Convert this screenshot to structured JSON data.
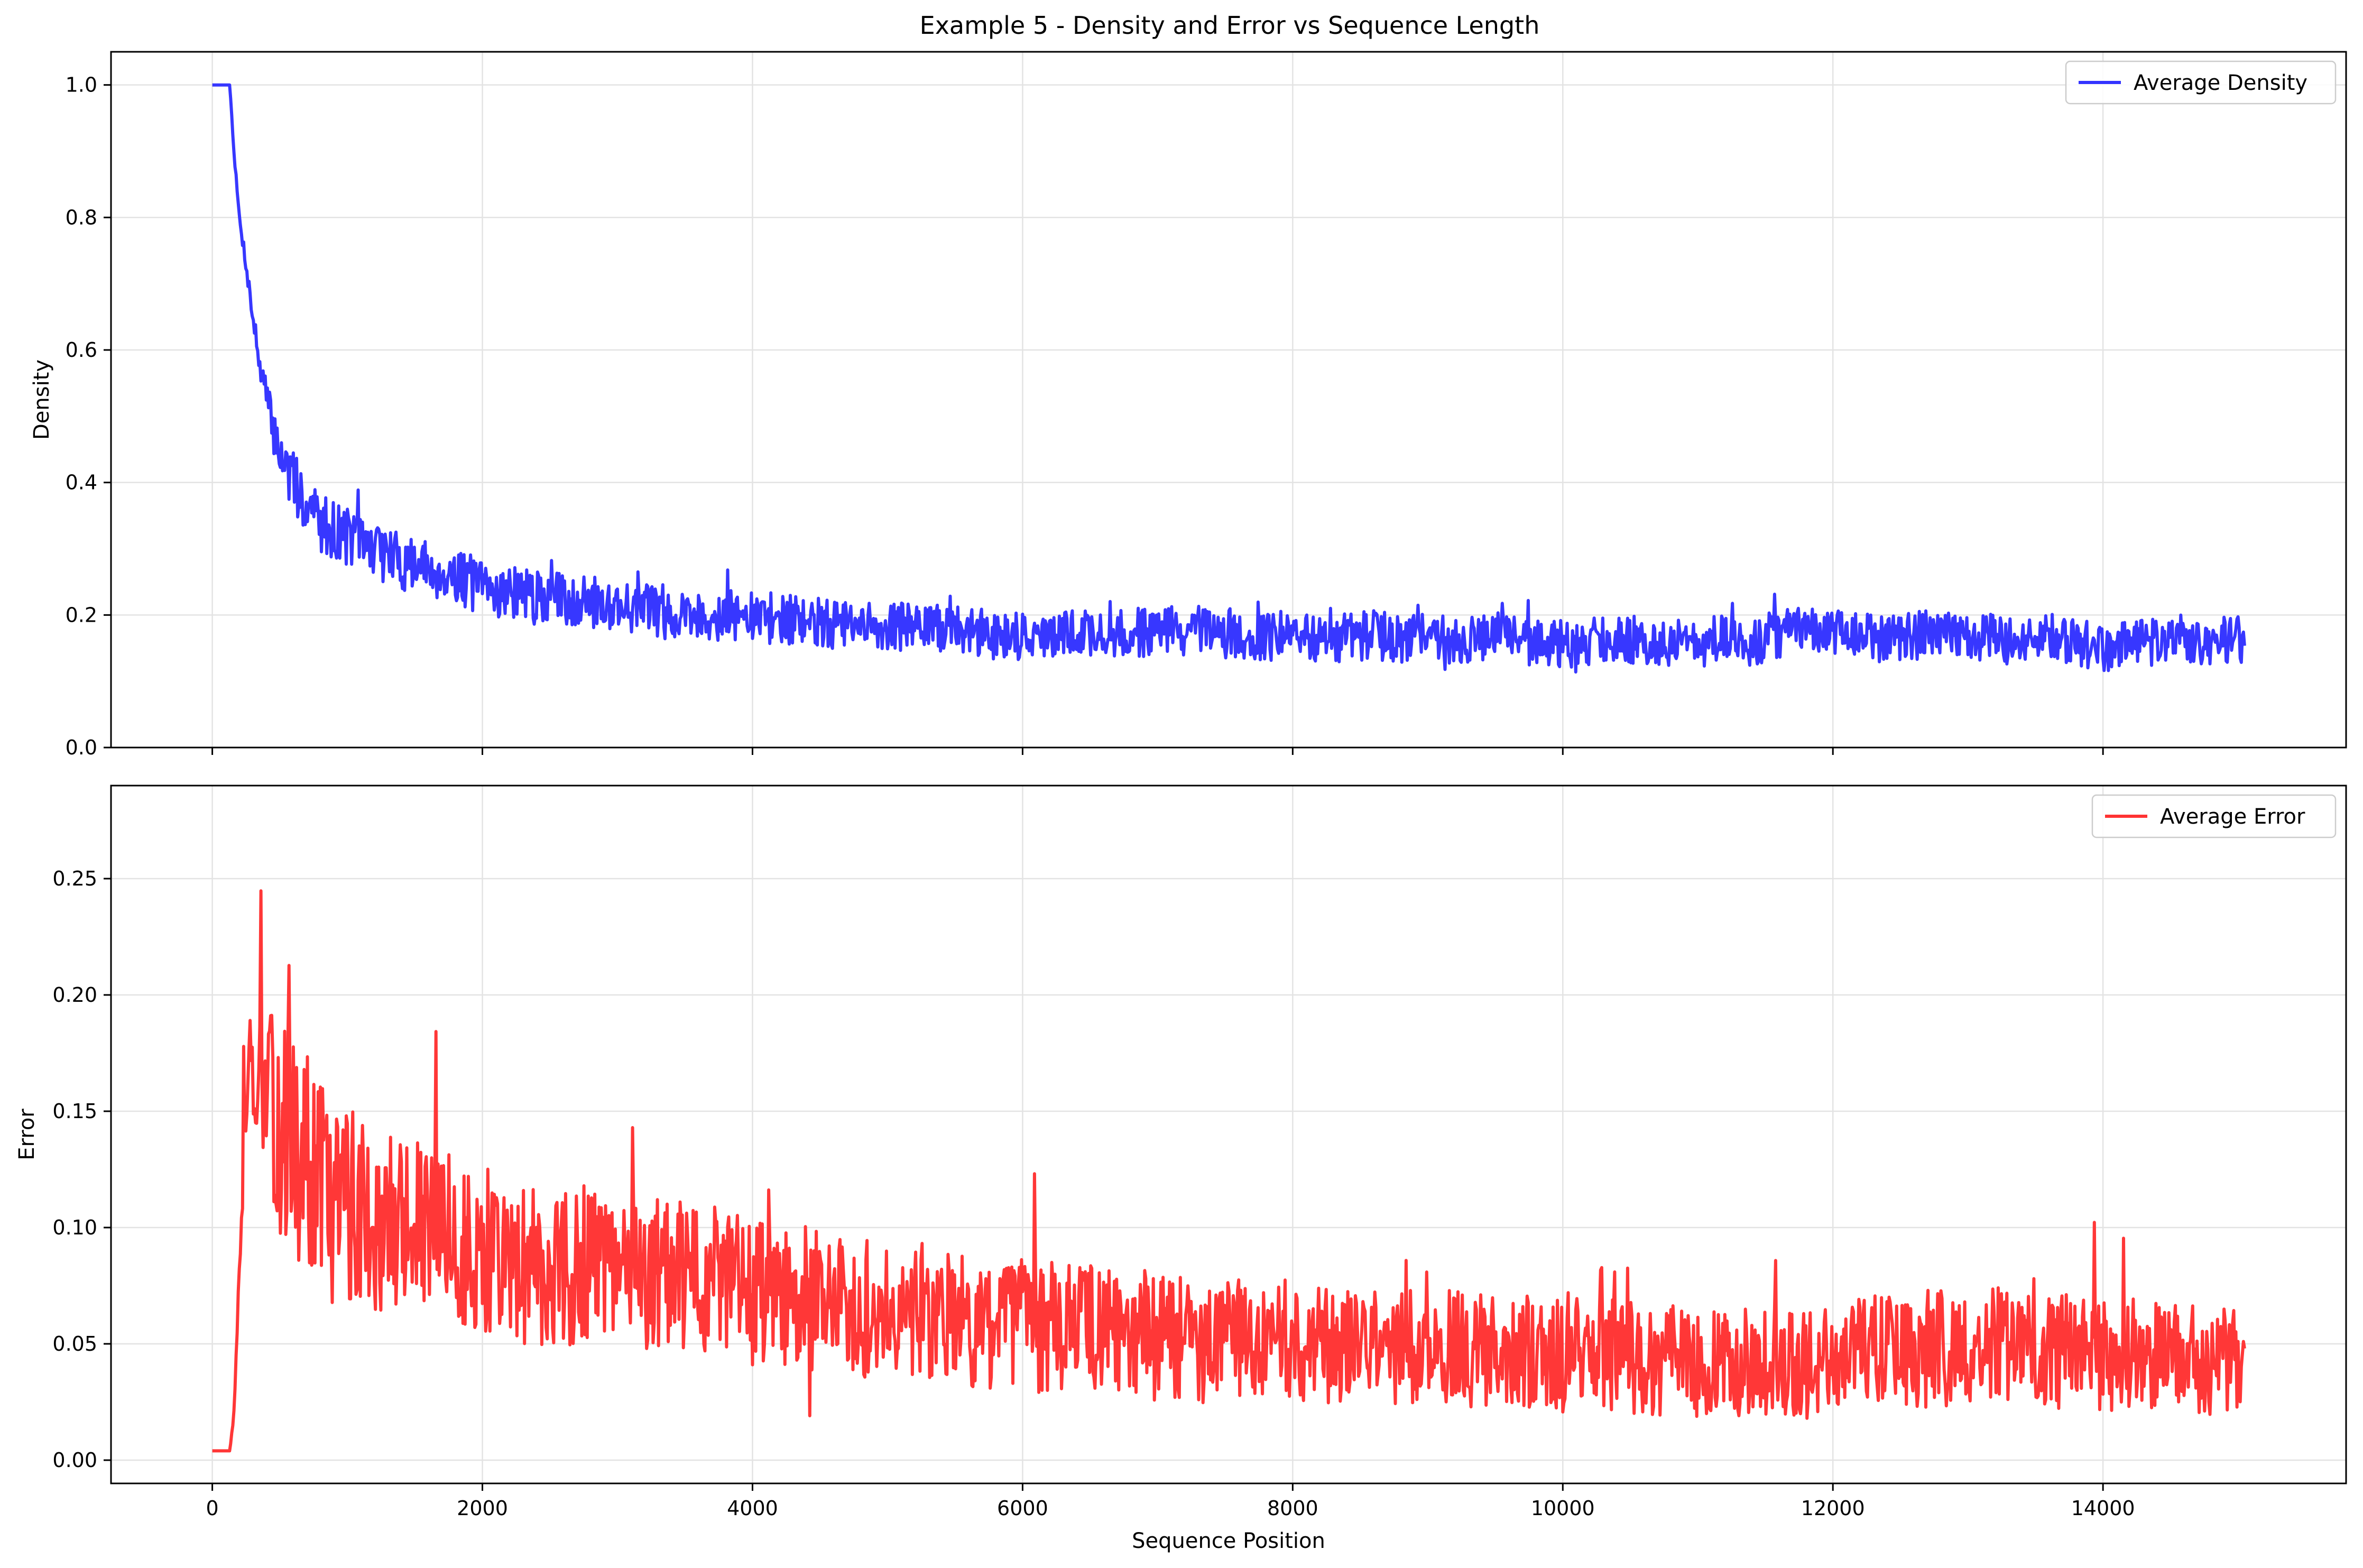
{
  "figure": {
    "title": "Example 5 - Density and Error vs Sequence Length"
  },
  "chart_data": [
    {
      "type": "line",
      "title": "Example 5 - Density and Error vs Sequence Length",
      "xlabel": "",
      "ylabel": "Density",
      "xlim": [
        -750,
        15800
      ],
      "ylim": [
        0.0,
        1.05
      ],
      "xticks": [
        0,
        2000,
        4000,
        6000,
        8000,
        10000,
        12000,
        14000
      ],
      "yticks": [
        0.0,
        0.2,
        0.4,
        0.6,
        0.8,
        1.0
      ],
      "ytick_labels": [
        "0.0",
        "0.2",
        "0.4",
        "0.6",
        "0.8",
        "1.0"
      ],
      "grid": true,
      "legend": "top-right",
      "series": [
        {
          "name": "Average Density",
          "color": "#3333ff",
          "x": [
            0,
            60,
            130,
            160,
            200,
            250,
            300,
            350,
            400,
            450,
            500,
            550,
            600,
            700,
            800,
            900,
            1000,
            1100,
            1200,
            1300,
            1400,
            1500,
            1600,
            1700,
            1800,
            1900,
            2000,
            2200,
            2400,
            2600,
            2800,
            3000,
            3200,
            3400,
            3600,
            3800,
            4000,
            4200,
            4400,
            4600,
            4800,
            5000,
            5200,
            5400,
            5600,
            5800,
            6000,
            6200,
            6400,
            6600,
            6800,
            7000,
            7200,
            7400,
            7600,
            7800,
            8000,
            8200,
            8400,
            8600,
            8800,
            9000,
            9200,
            9400,
            9600,
            9800,
            10000,
            10200,
            10400,
            10600,
            10800,
            11000,
            11200,
            11400,
            11600,
            11800,
            12000,
            12200,
            12400,
            12600,
            12800,
            13000,
            13200,
            13400,
            13600,
            13800,
            14000,
            14200,
            14400,
            14600,
            14800,
            15050
          ],
          "values": [
            1.0,
            1.0,
            1.0,
            0.9,
            0.8,
            0.73,
            0.65,
            0.58,
            0.53,
            0.48,
            0.45,
            0.42,
            0.4,
            0.37,
            0.34,
            0.33,
            0.32,
            0.31,
            0.3,
            0.29,
            0.28,
            0.275,
            0.27,
            0.265,
            0.26,
            0.25,
            0.24,
            0.235,
            0.225,
            0.225,
            0.22,
            0.215,
            0.21,
            0.205,
            0.2,
            0.2,
            0.195,
            0.195,
            0.19,
            0.185,
            0.18,
            0.185,
            0.18,
            0.18,
            0.175,
            0.17,
            0.17,
            0.165,
            0.175,
            0.17,
            0.17,
            0.18,
            0.175,
            0.17,
            0.17,
            0.165,
            0.17,
            0.165,
            0.165,
            0.17,
            0.165,
            0.17,
            0.16,
            0.165,
            0.165,
            0.16,
            0.155,
            0.16,
            0.165,
            0.16,
            0.16,
            0.155,
            0.165,
            0.16,
            0.17,
            0.175,
            0.17,
            0.17,
            0.165,
            0.17,
            0.17,
            0.17,
            0.165,
            0.16,
            0.165,
            0.16,
            0.15,
            0.155,
            0.16,
            0.165,
            0.16,
            0.165
          ]
        }
      ]
    },
    {
      "type": "line",
      "title": "",
      "xlabel": "Sequence Position",
      "ylabel": "Error",
      "xlim": [
        -750,
        15800
      ],
      "ylim": [
        -0.01,
        0.29
      ],
      "xticks": [
        0,
        2000,
        4000,
        6000,
        8000,
        10000,
        12000,
        14000
      ],
      "yticks": [
        0.0,
        0.05,
        0.1,
        0.15,
        0.2,
        0.25
      ],
      "ytick_labels": [
        "0.00",
        "0.05",
        "0.10",
        "0.15",
        "0.20",
        "0.25"
      ],
      "grid": true,
      "legend": "top-right",
      "series": [
        {
          "name": "Average Error",
          "color": "#ff3333",
          "x": [
            0,
            60,
            130,
            160,
            180,
            200,
            220,
            240,
            260,
            280,
            300,
            350,
            400,
            450,
            500,
            550,
            600,
            700,
            800,
            900,
            1000,
            1100,
            1200,
            1300,
            1400,
            1500,
            1600,
            1700,
            1800,
            1900,
            2000,
            2200,
            2400,
            2600,
            2800,
            3000,
            3200,
            3400,
            3600,
            3800,
            4000,
            4200,
            4400,
            4600,
            4800,
            5000,
            5200,
            5400,
            5600,
            5800,
            6000,
            6200,
            6400,
            6600,
            6800,
            7000,
            7200,
            7400,
            7600,
            7800,
            8000,
            8200,
            8400,
            8600,
            8800,
            9000,
            9200,
            9400,
            9600,
            9800,
            10000,
            10200,
            10400,
            10600,
            10800,
            11000,
            11200,
            11400,
            11600,
            11800,
            12000,
            12200,
            12400,
            12600,
            12800,
            13000,
            13200,
            13400,
            13600,
            13800,
            14000,
            14200,
            14400,
            14600,
            14800,
            15050
          ],
          "values": [
            0.004,
            0.004,
            0.004,
            0.02,
            0.05,
            0.08,
            0.11,
            0.14,
            0.17,
            0.175,
            0.17,
            0.16,
            0.155,
            0.15,
            0.145,
            0.14,
            0.135,
            0.13,
            0.12,
            0.115,
            0.11,
            0.11,
            0.105,
            0.1,
            0.1,
            0.1,
            0.095,
            0.095,
            0.09,
            0.09,
            0.09,
            0.085,
            0.085,
            0.082,
            0.082,
            0.08,
            0.078,
            0.078,
            0.078,
            0.075,
            0.072,
            0.07,
            0.07,
            0.068,
            0.065,
            0.068,
            0.065,
            0.063,
            0.06,
            0.058,
            0.058,
            0.055,
            0.06,
            0.055,
            0.055,
            0.055,
            0.052,
            0.05,
            0.052,
            0.05,
            0.05,
            0.05,
            0.048,
            0.05,
            0.048,
            0.05,
            0.048,
            0.047,
            0.046,
            0.046,
            0.045,
            0.045,
            0.045,
            0.044,
            0.043,
            0.042,
            0.044,
            0.042,
            0.042,
            0.04,
            0.045,
            0.047,
            0.048,
            0.048,
            0.048,
            0.05,
            0.049,
            0.048,
            0.047,
            0.047,
            0.046,
            0.045,
            0.044,
            0.044,
            0.042,
            0.042
          ]
        }
      ]
    }
  ]
}
